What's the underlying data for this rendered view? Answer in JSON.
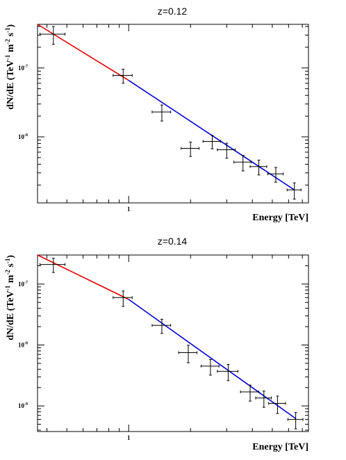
{
  "chart_data": [
    {
      "type": "scatter",
      "title": "z=0.12",
      "xlabel": "Energy [TeV]",
      "ylabel_parts": [
        "dN/dE (TeV",
        "-1",
        " m",
        "-2",
        " s",
        "-1",
        ")"
      ],
      "xscale": "log",
      "yscale": "log",
      "xlim": [
        0.36,
        7.5
      ],
      "ylim": [
        1.1e-09,
        4.3e-07
      ],
      "x_ticks": [
        {
          "value": 1,
          "label": "1"
        }
      ],
      "y_ticks": [
        {
          "value": 1e-07,
          "label": "10",
          "exp": "-7"
        },
        {
          "value": 1e-08,
          "label": "10",
          "exp": "-8"
        }
      ],
      "points": [
        {
          "x": 0.43,
          "y": 3.1e-07,
          "xerr": [
            0.06,
            0.06
          ],
          "yerr": [
            9e-08,
            9e-08
          ]
        },
        {
          "x": 0.94,
          "y": 7.8e-08,
          "xerr": [
            0.1,
            0.1
          ],
          "yerr": [
            1.8e-08,
            1.8e-08
          ]
        },
        {
          "x": 1.45,
          "y": 2.3e-08,
          "xerr": [
            0.15,
            0.15
          ],
          "yerr": [
            6e-09,
            6e-09
          ]
        },
        {
          "x": 2.0,
          "y": 6.8e-09,
          "xerr": [
            0.2,
            0.2
          ],
          "yerr": [
            1.6e-09,
            1.6e-09
          ]
        },
        {
          "x": 2.55,
          "y": 8.6e-09,
          "xerr": [
            0.25,
            0.25
          ],
          "yerr": [
            1.9e-09,
            1.9e-09
          ]
        },
        {
          "x": 3.0,
          "y": 6.5e-09,
          "xerr": [
            0.3,
            0.3
          ],
          "yerr": [
            1.6e-09,
            1.6e-09
          ]
        },
        {
          "x": 3.6,
          "y": 4.3e-09,
          "xerr": [
            0.35,
            0.35
          ],
          "yerr": [
            1.1e-09,
            1.1e-09
          ]
        },
        {
          "x": 4.3,
          "y": 3.7e-09,
          "xerr": [
            0.4,
            0.4
          ],
          "yerr": [
            9e-10,
            9e-10
          ]
        },
        {
          "x": 5.2,
          "y": 2.9e-09,
          "xerr": [
            0.45,
            0.45
          ],
          "yerr": [
            7e-10,
            7e-10
          ]
        },
        {
          "x": 6.4,
          "y": 1.7e-09,
          "xerr": [
            0.5,
            0.5
          ],
          "yerr": [
            4.5e-10,
            4.5e-10
          ]
        }
      ],
      "fits": [
        {
          "x": [
            0.36,
            1.0
          ],
          "y": [
            4.3e-07,
            6.6e-08
          ],
          "color": "#e00000"
        },
        {
          "x": [
            1.0,
            6.4
          ],
          "y": [
            6.6e-08,
            1.7e-09
          ],
          "color": "#0000d0"
        }
      ],
      "grid": false
    },
    {
      "type": "scatter",
      "title": "z=0.14",
      "xlabel": "Energy [TeV]",
      "ylabel_parts": [
        "dN/dE (TeV",
        "-1",
        " m",
        "-2",
        " s",
        "-1",
        ")"
      ],
      "xscale": "log",
      "yscale": "log",
      "xlim": [
        0.36,
        7.5
      ],
      "ylim": [
        3.8e-10,
        3e-07
      ],
      "x_ticks": [
        {
          "value": 1,
          "label": "1"
        }
      ],
      "y_ticks": [
        {
          "value": 1e-07,
          "label": "10",
          "exp": "-7"
        },
        {
          "value": 1e-08,
          "label": "10",
          "exp": "-8"
        },
        {
          "value": 1e-09,
          "label": "10",
          "exp": "-9"
        }
      ],
      "points": [
        {
          "x": 0.43,
          "y": 2.1e-07,
          "xerr": [
            0.06,
            0.06
          ],
          "yerr": [
            5.5e-08,
            5.5e-08
          ]
        },
        {
          "x": 0.94,
          "y": 6e-08,
          "xerr": [
            0.1,
            0.1
          ],
          "yerr": [
            1.7e-08,
            1.7e-08
          ]
        },
        {
          "x": 1.45,
          "y": 2.1e-08,
          "xerr": [
            0.15,
            0.15
          ],
          "yerr": [
            5.5e-09,
            5.5e-09
          ]
        },
        {
          "x": 1.95,
          "y": 7.5e-09,
          "xerr": [
            0.2,
            0.2
          ],
          "yerr": [
            2.4e-09,
            2.4e-09
          ]
        },
        {
          "x": 2.5,
          "y": 4.5e-09,
          "xerr": [
            0.25,
            0.25
          ],
          "yerr": [
            1.3e-09,
            1.3e-09
          ]
        },
        {
          "x": 3.05,
          "y": 3.7e-09,
          "xerr": [
            0.35,
            0.35
          ],
          "yerr": [
            1.1e-09,
            1.1e-09
          ]
        },
        {
          "x": 3.9,
          "y": 1.7e-09,
          "xerr": [
            0.4,
            0.4
          ],
          "yerr": [
            5e-10,
            5e-10
          ]
        },
        {
          "x": 4.55,
          "y": 1.35e-09,
          "xerr": [
            0.4,
            0.4
          ],
          "yerr": [
            4e-10,
            4e-10
          ]
        },
        {
          "x": 5.3,
          "y": 1.1e-09,
          "xerr": [
            0.5,
            0.5
          ],
          "yerr": [
            3.5e-10,
            3.5e-10
          ]
        },
        {
          "x": 6.5,
          "y": 6e-10,
          "xerr": [
            0.55,
            0.55
          ],
          "yerr": [
            1.8e-10,
            1.8e-10
          ]
        }
      ],
      "fits": [
        {
          "x": [
            0.36,
            1.0
          ],
          "y": [
            3e-07,
            5.6e-08
          ],
          "color": "#e00000"
        },
        {
          "x": [
            1.0,
            6.5
          ],
          "y": [
            5.6e-08,
            6.2e-10
          ],
          "color": "#0000d0"
        }
      ],
      "grid": false
    }
  ]
}
